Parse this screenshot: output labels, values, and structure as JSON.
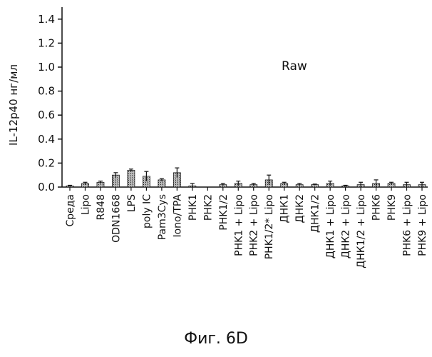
{
  "figure_caption": "Фиг. 6D",
  "chart_data": {
    "type": "bar",
    "title": "",
    "annotation": "Raw",
    "xlabel": "",
    "ylabel": "IL-12p40 нг/мл",
    "ylim": [
      0,
      1.5
    ],
    "yticks": [
      0.0,
      0.2,
      0.4,
      0.6,
      0.8,
      1.0,
      1.2,
      1.4
    ],
    "ytick_labels": [
      "0.0",
      "0.2",
      "0.4",
      "0.6",
      "0.8",
      "1.0",
      "1.2",
      "1.4"
    ],
    "grid": false,
    "categories": [
      "Среда",
      "Lipo",
      "R848",
      "ODN1668",
      "LPS",
      "poly IC",
      "Pam3Cys",
      "Iono/TPA",
      "PHK1",
      "PHK2",
      "PHK1/2",
      "PHK1 + Lipo",
      "PHK2 + Lipo",
      "PHK1/2* Lipo",
      "ДНК1",
      "ДНК2",
      "ДНК1/2",
      "ДНК1 + Lipo",
      "ДНК2 + Lipo",
      "ДНК1/2 + Lipo",
      "PHK6",
      "PHK9",
      "PHK6 + Lipo",
      "PHK9 + Lipo"
    ],
    "values": [
      0.01,
      0.03,
      0.04,
      0.1,
      0.14,
      0.09,
      0.06,
      0.12,
      0.01,
      0.0,
      0.02,
      0.03,
      0.02,
      0.06,
      0.03,
      0.02,
      0.02,
      0.03,
      0.01,
      0.02,
      0.03,
      0.03,
      0.02,
      0.02
    ],
    "errors": [
      0.005,
      0.01,
      0.01,
      0.02,
      0.01,
      0.04,
      0.01,
      0.04,
      0.02,
      0.0,
      0.01,
      0.02,
      0.01,
      0.04,
      0.01,
      0.01,
      0.005,
      0.02,
      0.005,
      0.02,
      0.03,
      0.01,
      0.02,
      0.02
    ]
  }
}
